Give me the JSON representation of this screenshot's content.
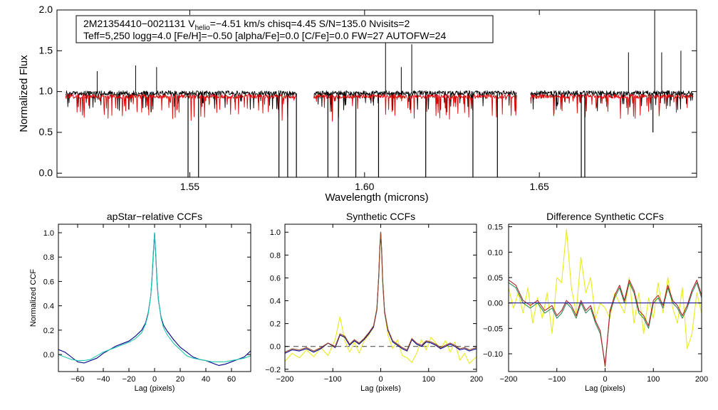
{
  "chart_data": [
    {
      "id": "spectrum",
      "type": "line",
      "xlabel": "Wavelength (microns)",
      "ylabel": "Normalized Flux",
      "xlim": [
        1.512,
        1.695
      ],
      "ylim": [
        -0.05,
        2.0
      ],
      "xticks": [
        1.55,
        1.6,
        1.65
      ],
      "xtick_labels": [
        "1.55",
        "1.60",
        "1.65"
      ],
      "yticks": [
        0.0,
        0.5,
        1.0,
        1.5,
        2.0
      ],
      "ytick_labels": [
        "0.0",
        "0.5",
        "1.0",
        "1.5",
        "2.0"
      ],
      "info_lines": [
        [
          "2M21354410−0021131  V",
          "helio",
          "=−4.51 km/s  chisq=4.45  S/N=135.0  Nvisits=2"
        ],
        [
          "Teff=5,250 logg=4.0 [Fe/H]=−0.50 [alpha/Fe]=0.0 [C/Fe]=0.0 FW=27 AUTOFW=24"
        ]
      ],
      "chips": [
        [
          1.5145,
          1.5805
        ],
        [
          1.5855,
          1.6435
        ],
        [
          1.6475,
          1.694
        ]
      ],
      "series": [
        {
          "name": "observed",
          "color": "#000000"
        },
        {
          "name": "model",
          "color": "#dd0000",
          "offset": -0.04
        }
      ],
      "emission_spikes": [
        [
          1.5235,
          1.25
        ],
        [
          1.5345,
          1.32
        ],
        [
          1.5405,
          1.3
        ],
        [
          1.606,
          1.6
        ],
        [
          1.6135,
          1.58
        ],
        [
          1.6105,
          1.3
        ],
        [
          1.6755,
          1.48
        ],
        [
          1.683,
          2.0
        ],
        [
          1.685,
          1.48
        ],
        [
          1.6905,
          1.5
        ]
      ],
      "absorption_dips": [
        [
          1.5495,
          -0.02
        ],
        [
          1.5525,
          -0.02
        ],
        [
          1.5755,
          0.0
        ],
        [
          1.578,
          0.0
        ],
        [
          1.5805,
          0.0
        ],
        [
          1.5895,
          0.0
        ],
        [
          1.5925,
          0.0
        ],
        [
          1.5975,
          0.0
        ],
        [
          1.604,
          0.0
        ],
        [
          1.6175,
          0.0
        ],
        [
          1.631,
          0.0
        ],
        [
          1.638,
          0.0
        ],
        [
          1.662,
          0.0
        ],
        [
          1.663,
          0.0
        ],
        [
          1.6825,
          0.6
        ]
      ]
    },
    {
      "id": "apstar",
      "type": "line",
      "title": "apStar−relative CCFs",
      "xlabel": "Lag (pixels)",
      "ylabel": "Normalized CCF",
      "xlim": [
        -75,
        75
      ],
      "ylim": [
        -0.14,
        1.07
      ],
      "xticks": [
        -60,
        -40,
        -20,
        0,
        20,
        40,
        60
      ],
      "xtick_labels": [
        "−60",
        "−40",
        "−20",
        "0",
        "20",
        "40",
        "60"
      ],
      "yticks": [
        0.0,
        0.2,
        0.4,
        0.6,
        0.8,
        1.0
      ],
      "ytick_labels": [
        "0.0",
        "0.2",
        "0.4",
        "0.6",
        "0.8",
        "1.0"
      ],
      "series": [
        {
          "name": "ccf-blue",
          "color": "#00008b",
          "x": [
            -75,
            -70,
            -65,
            -60,
            -55,
            -50,
            -45,
            -40,
            -35,
            -30,
            -25,
            -20,
            -15,
            -10,
            -7,
            -5,
            -3,
            -2,
            -1,
            0,
            1,
            2,
            3,
            5,
            7,
            10,
            15,
            20,
            25,
            30,
            35,
            40,
            45,
            50,
            55,
            60,
            65,
            70,
            75
          ],
          "values": [
            0.04,
            0.02,
            -0.02,
            -0.06,
            -0.07,
            -0.05,
            -0.03,
            0.01,
            0.04,
            0.07,
            0.09,
            0.11,
            0.15,
            0.2,
            0.26,
            0.34,
            0.48,
            0.62,
            0.82,
            1.0,
            0.8,
            0.58,
            0.45,
            0.31,
            0.24,
            0.19,
            0.12,
            0.06,
            0.02,
            -0.02,
            -0.04,
            -0.05,
            -0.07,
            -0.09,
            -0.08,
            -0.06,
            -0.04,
            -0.02,
            0.03
          ]
        },
        {
          "name": "ccf-cyan",
          "color": "#20c8b0",
          "x": [
            -75,
            -70,
            -65,
            -60,
            -55,
            -50,
            -45,
            -40,
            -35,
            -30,
            -25,
            -20,
            -15,
            -10,
            -7,
            -5,
            -3,
            -2,
            -1,
            0,
            1,
            2,
            3,
            5,
            7,
            10,
            15,
            20,
            25,
            30,
            35,
            40,
            45,
            50,
            55,
            60,
            65,
            70,
            75
          ],
          "values": [
            0.0,
            -0.02,
            -0.04,
            -0.05,
            -0.05,
            -0.04,
            -0.01,
            0.02,
            0.04,
            0.06,
            0.08,
            0.1,
            0.13,
            0.18,
            0.25,
            0.33,
            0.48,
            0.64,
            0.84,
            1.0,
            0.82,
            0.6,
            0.46,
            0.3,
            0.22,
            0.16,
            0.09,
            0.04,
            -0.01,
            -0.03,
            -0.04,
            -0.05,
            -0.06,
            -0.06,
            -0.06,
            -0.05,
            -0.04,
            -0.03,
            -0.01
          ]
        }
      ]
    },
    {
      "id": "synthetic",
      "type": "line",
      "title": "Synthetic CCFs",
      "xlabel": "Lag (pixels)",
      "xlim": [
        -200,
        200
      ],
      "ylim": [
        -0.22,
        1.07
      ],
      "xticks": [
        -200,
        -100,
        0,
        100,
        200
      ],
      "xtick_labels": [
        "−200",
        "−100",
        "0",
        "100",
        "200"
      ],
      "yticks": [
        -0.2,
        0.0,
        0.2,
        0.4,
        0.6,
        0.8,
        1.0
      ],
      "ytick_labels": [
        "−0.2",
        "0.0",
        "0.2",
        "0.4",
        "0.6",
        "0.8",
        "1.0"
      ],
      "reference_line": 0.0,
      "series": [
        {
          "name": "ccf-yellow",
          "color": "#e8ea20",
          "x": [
            -200,
            -185,
            -170,
            -155,
            -140,
            -125,
            -110,
            -95,
            -85,
            -75,
            -65,
            -55,
            -45,
            -35,
            -25,
            -15,
            -8,
            -4,
            -2,
            0,
            2,
            4,
            8,
            15,
            25,
            35,
            45,
            55,
            65,
            75,
            85,
            95,
            105,
            115,
            125,
            135,
            145,
            155,
            165,
            175,
            185,
            200
          ],
          "values": [
            -0.13,
            -0.06,
            -0.1,
            -0.03,
            -0.09,
            -0.01,
            -0.08,
            0.06,
            0.26,
            0.05,
            -0.05,
            0.04,
            -0.06,
            0.05,
            0.1,
            0.17,
            0.34,
            0.62,
            0.85,
            0.97,
            0.8,
            0.55,
            0.3,
            0.1,
            -0.02,
            0.06,
            -0.08,
            -0.1,
            -0.14,
            -0.06,
            0.06,
            -0.03,
            0.08,
            0.03,
            -0.02,
            0.05,
            -0.05,
            0.04,
            -0.12,
            -0.06,
            -0.15,
            -0.09
          ]
        },
        {
          "name": "ccf-navy",
          "color": "#00008b",
          "x": [
            -200,
            -185,
            -170,
            -155,
            -140,
            -125,
            -110,
            -95,
            -85,
            -75,
            -65,
            -55,
            -45,
            -35,
            -25,
            -15,
            -8,
            -4,
            -2,
            0,
            2,
            4,
            8,
            15,
            25,
            35,
            45,
            55,
            65,
            75,
            85,
            95,
            105,
            115,
            125,
            135,
            145,
            155,
            165,
            175,
            185,
            200
          ],
          "values": [
            -0.06,
            -0.03,
            -0.04,
            -0.02,
            -0.05,
            -0.02,
            0.03,
            -0.01,
            0.1,
            0.08,
            0.01,
            0.05,
            0.02,
            0.06,
            0.11,
            0.17,
            0.32,
            0.62,
            0.86,
            1.0,
            0.84,
            0.58,
            0.3,
            0.14,
            0.04,
            0.01,
            -0.02,
            -0.04,
            0.06,
            0.02,
            0.0,
            0.04,
            0.03,
            0.01,
            -0.02,
            0.0,
            0.02,
            0.0,
            -0.03,
            -0.02,
            -0.04,
            -0.02
          ]
        },
        {
          "name": "ccf-brown",
          "color": "#9a4a2a",
          "x": [
            -200,
            -185,
            -170,
            -155,
            -140,
            -125,
            -110,
            -95,
            -85,
            -75,
            -65,
            -55,
            -45,
            -35,
            -25,
            -15,
            -8,
            -4,
            -2,
            0,
            2,
            4,
            8,
            15,
            25,
            35,
            45,
            55,
            65,
            75,
            85,
            95,
            105,
            115,
            125,
            135,
            145,
            155,
            165,
            175,
            185,
            200
          ],
          "values": [
            -0.05,
            -0.02,
            -0.03,
            -0.01,
            -0.04,
            -0.01,
            0.03,
            0.0,
            0.11,
            0.09,
            0.02,
            0.06,
            0.03,
            0.07,
            0.12,
            0.18,
            0.33,
            0.63,
            0.87,
            1.0,
            0.85,
            0.59,
            0.31,
            0.15,
            0.05,
            0.02,
            -0.01,
            -0.03,
            0.07,
            0.03,
            0.01,
            0.05,
            0.04,
            0.02,
            -0.01,
            0.01,
            0.03,
            0.01,
            -0.02,
            -0.01,
            -0.03,
            -0.01
          ]
        }
      ]
    },
    {
      "id": "difference",
      "type": "line",
      "title": "Difference Synthetic CCFs",
      "xlabel": "Lag (pixels)",
      "xlim": [
        -200,
        200
      ],
      "ylim": [
        -0.135,
        0.155
      ],
      "xticks": [
        -200,
        -100,
        0,
        100,
        200
      ],
      "xtick_labels": [
        "−200",
        "−100",
        "0",
        "100",
        "200"
      ],
      "yticks": [
        -0.1,
        -0.05,
        0.0,
        0.05,
        0.1,
        0.15
      ],
      "ytick_labels": [
        "−0.10",
        "−0.05",
        "0.00",
        "0.05",
        "0.10",
        "0.15"
      ],
      "series": [
        {
          "name": "diff-yellow",
          "color": "#e8ea20",
          "x": [
            -200,
            -190,
            -180,
            -170,
            -160,
            -150,
            -140,
            -130,
            -120,
            -110,
            -100,
            -90,
            -80,
            -70,
            -60,
            -50,
            -40,
            -30,
            -20,
            -10,
            0,
            10,
            20,
            30,
            40,
            50,
            60,
            70,
            80,
            90,
            100,
            110,
            120,
            130,
            140,
            150,
            160,
            170,
            180,
            190,
            200
          ],
          "values": [
            0.03,
            -0.01,
            0.02,
            -0.02,
            0.03,
            -0.04,
            0.01,
            -0.03,
            0.02,
            -0.06,
            0.05,
            0.04,
            0.145,
            0.03,
            -0.02,
            0.09,
            0.02,
            0.05,
            -0.03,
            0.0,
            -0.01,
            -0.03,
            0.02,
            0.0,
            -0.02,
            0.05,
            -0.04,
            0.02,
            -0.06,
            0.01,
            -0.03,
            0.04,
            -0.02,
            0.05,
            -0.01,
            -0.04,
            0.03,
            -0.09,
            -0.06,
            0.02,
            -0.02
          ]
        },
        {
          "name": "diff-green",
          "color": "#2e8b57",
          "x": [
            -200,
            -185,
            -170,
            -155,
            -140,
            -125,
            -110,
            -100,
            -90,
            -80,
            -70,
            -60,
            -50,
            -40,
            -30,
            -20,
            -10,
            0,
            10,
            20,
            30,
            40,
            50,
            60,
            70,
            80,
            90,
            100,
            110,
            120,
            130,
            140,
            150,
            160,
            170,
            180,
            190,
            200
          ],
          "values": [
            0.04,
            0.03,
            0.0,
            -0.01,
            0.0,
            -0.02,
            -0.01,
            -0.03,
            -0.02,
            0.0,
            -0.01,
            -0.03,
            0.0,
            -0.02,
            -0.01,
            -0.04,
            -0.06,
            -0.12,
            -0.02,
            0.01,
            0.03,
            0.0,
            0.04,
            0.02,
            -0.02,
            -0.03,
            -0.05,
            0.0,
            0.01,
            -0.01,
            0.03,
            0.0,
            -0.01,
            -0.03,
            -0.01,
            0.02,
            0.04,
            0.01
          ]
        },
        {
          "name": "diff-red",
          "color": "#b22222",
          "x": [
            -200,
            -185,
            -170,
            -155,
            -140,
            -125,
            -110,
            -100,
            -90,
            -80,
            -70,
            -60,
            -50,
            -40,
            -30,
            -20,
            -10,
            0,
            10,
            20,
            30,
            40,
            50,
            60,
            70,
            80,
            90,
            100,
            110,
            120,
            130,
            140,
            150,
            160,
            170,
            180,
            190,
            200
          ],
          "values": [
            0.045,
            0.035,
            0.005,
            -0.005,
            0.005,
            -0.015,
            -0.005,
            -0.025,
            -0.015,
            0.005,
            -0.005,
            -0.025,
            0.005,
            -0.015,
            -0.005,
            -0.035,
            -0.055,
            -0.125,
            -0.015,
            0.015,
            0.035,
            0.005,
            0.045,
            0.025,
            -0.015,
            -0.025,
            -0.045,
            0.005,
            0.015,
            -0.005,
            0.035,
            0.005,
            -0.005,
            -0.025,
            -0.005,
            0.025,
            0.045,
            0.015
          ]
        },
        {
          "name": "diff-zero",
          "color": "#1a1aa0",
          "x": [
            -200,
            200
          ],
          "values": [
            0.0,
            0.0
          ]
        }
      ]
    }
  ]
}
